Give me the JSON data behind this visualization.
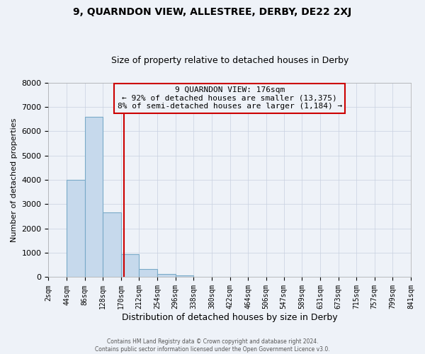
{
  "title_line1": "9, QUARNDON VIEW, ALLESTREE, DERBY, DE22 2XJ",
  "title_line2": "Size of property relative to detached houses in Derby",
  "xlabel": "Distribution of detached houses by size in Derby",
  "ylabel": "Number of detached properties",
  "footer_line1": "Contains HM Land Registry data © Crown copyright and database right 2024.",
  "footer_line2": "Contains public sector information licensed under the Open Government Licence v3.0.",
  "annotation_line1": "9 QUARNDON VIEW: 176sqm",
  "annotation_line2": "← 92% of detached houses are smaller (13,375)",
  "annotation_line3": "8% of semi-detached houses are larger (1,184) →",
  "bar_edges": [
    2,
    44,
    86,
    128,
    170,
    212,
    254,
    296,
    338,
    380,
    422,
    464,
    506,
    547,
    589,
    631,
    673,
    715,
    757,
    799,
    841
  ],
  "bar_heights": [
    0,
    4000,
    6600,
    2650,
    950,
    330,
    135,
    75,
    0,
    0,
    0,
    0,
    0,
    0,
    0,
    0,
    0,
    0,
    0,
    0
  ],
  "property_line_x": 176,
  "bar_color": "#c6d9ec",
  "bar_edge_color": "#7aaac8",
  "property_line_color": "#cc0000",
  "annotation_box_edge_color": "#cc0000",
  "ylim": [
    0,
    8000
  ],
  "xlim": [
    2,
    841
  ],
  "tick_labels": [
    "2sqm",
    "44sqm",
    "86sqm",
    "128sqm",
    "170sqm",
    "212sqm",
    "254sqm",
    "296sqm",
    "338sqm",
    "380sqm",
    "422sqm",
    "464sqm",
    "506sqm",
    "547sqm",
    "589sqm",
    "631sqm",
    "673sqm",
    "715sqm",
    "757sqm",
    "799sqm",
    "841sqm"
  ],
  "background_color": "#eef2f8",
  "grid_color": "#c8d0e0",
  "title1_fontsize": 10,
  "title2_fontsize": 9,
  "annotation_fontsize": 8,
  "xlabel_fontsize": 9,
  "ylabel_fontsize": 8,
  "ytick_fontsize": 8,
  "xtick_fontsize": 7
}
